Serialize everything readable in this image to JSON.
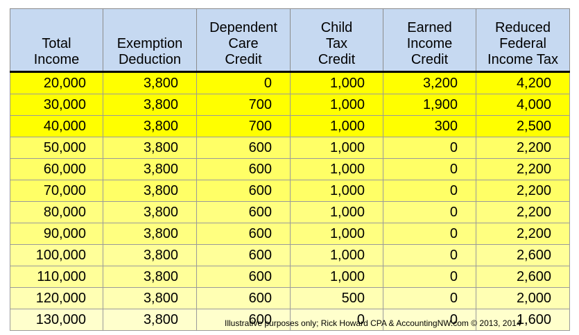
{
  "table": {
    "headers": [
      [
        "Total",
        "Income"
      ],
      [
        "Exemption",
        "Deduction"
      ],
      [
        "Dependent",
        "Care",
        "Credit"
      ],
      [
        "Child",
        "Tax",
        "Credit"
      ],
      [
        "Earned",
        "Income",
        "Credit"
      ],
      [
        "Reduced",
        "Federal",
        "Income Tax"
      ]
    ],
    "rows": [
      [
        "20,000",
        "3,800",
        "0",
        "1,000",
        "3,200",
        "4,200"
      ],
      [
        "30,000",
        "3,800",
        "700",
        "1,000",
        "1,900",
        "4,000"
      ],
      [
        "40,000",
        "3,800",
        "700",
        "1,000",
        "300",
        "2,500"
      ],
      [
        "50,000",
        "3,800",
        "600",
        "1,000",
        "0",
        "2,200"
      ],
      [
        "60,000",
        "3,800",
        "600",
        "1,000",
        "0",
        "2,200"
      ],
      [
        "70,000",
        "3,800",
        "600",
        "1,000",
        "0",
        "2,200"
      ],
      [
        "80,000",
        "3,800",
        "600",
        "1,000",
        "0",
        "2,200"
      ],
      [
        "90,000",
        "3,800",
        "600",
        "1,000",
        "0",
        "2,200"
      ],
      [
        "100,000",
        "3,800",
        "600",
        "1,000",
        "0",
        "2,600"
      ],
      [
        "110,000",
        "3,800",
        "600",
        "1,000",
        "0",
        "2,600"
      ],
      [
        "120,000",
        "3,800",
        "600",
        "500",
        "0",
        "2,000"
      ],
      [
        "130,000",
        "3,800",
        "600",
        "0",
        "0",
        "1,600"
      ]
    ],
    "row_colors": [
      "#ffff00",
      "#ffff00",
      "#ffff00",
      "#ffff66",
      "#ffff66",
      "#ffff66",
      "#ffff80",
      "#ffff80",
      "#ffff99",
      "#ffff99",
      "#ffffb3",
      "#ffffcc"
    ]
  },
  "footer": "Illustrative purposes only; Rick Howard CPA & AccountingNW.com © 2013, 2014"
}
